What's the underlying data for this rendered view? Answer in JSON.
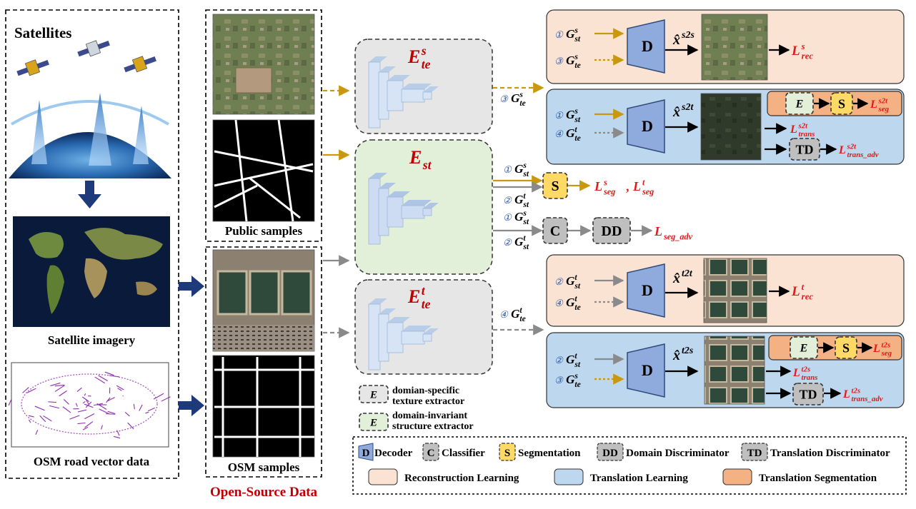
{
  "left": {
    "satellites_label": "Satellites",
    "satellite_imagery_label": "Satellite imagery",
    "osm_vector_label": "OSM road vector data"
  },
  "samples": {
    "public_label": "Public samples",
    "osm_label": "OSM samples",
    "open_source_label": "Open-Source Data"
  },
  "encoders": {
    "source_texture": {
      "base": "E",
      "sup": "s",
      "sub": "te"
    },
    "structure": {
      "base": "E",
      "sub": "st"
    },
    "target_texture": {
      "base": "E",
      "sup": "t",
      "sub": "te"
    }
  },
  "features": {
    "g_te_s": {
      "num": "③",
      "base": "G",
      "sup": "s",
      "sub": "te"
    },
    "g_st_s": {
      "num": "①",
      "base": "G",
      "sup": "s",
      "sub": "st"
    },
    "g_st_t": {
      "num": "②",
      "base": "G",
      "sup": "t",
      "sub": "st"
    },
    "g_st_s_2": {
      "num": "①",
      "base": "G",
      "sup": "s",
      "sub": "st"
    },
    "g_st_t_2": {
      "num": "②",
      "base": "G",
      "sup": "t",
      "sub": "st"
    },
    "g_te_t": {
      "num": "④",
      "base": "G",
      "sup": "t",
      "sub": "te"
    }
  },
  "middle_heads": {
    "segmentation": "S",
    "seg_loss_a": {
      "base": "L",
      "sup": "s",
      "sub": "seg"
    },
    "seg_loss_b": {
      "base": "L",
      "sup": "t",
      "sub": "seg"
    },
    "seg_loss_sep": ",",
    "classifier": "C",
    "domain_disc": "DD",
    "seg_adv_loss": {
      "base": "L",
      "sub": "seg_adv"
    }
  },
  "boxes": {
    "rec_s": {
      "in1": {
        "num": "①",
        "base": "G",
        "sup": "s",
        "sub": "st"
      },
      "in2": {
        "num": "③",
        "base": "G",
        "sup": "s",
        "sub": "te"
      },
      "decoder": "D",
      "out": {
        "base": "x̂",
        "sup": "s2s"
      },
      "loss": {
        "base": "L",
        "sup": "s",
        "sub": "rec"
      }
    },
    "trans_s2t": {
      "in1": {
        "num": "①",
        "base": "G",
        "sup": "s",
        "sub": "st"
      },
      "in2": {
        "num": "④",
        "base": "G",
        "sup": "t",
        "sub": "te"
      },
      "decoder": "D",
      "out": {
        "base": "x̂",
        "sup": "s2t"
      },
      "enc": {
        "base": "E",
        "sub": "st"
      },
      "seg": "S",
      "seg_loss": {
        "base": "L",
        "sup": "s2t",
        "sub": "seg"
      },
      "trans_loss": {
        "base": "L",
        "sup": "s2t",
        "sub": "trans"
      },
      "td": "TD",
      "adv_loss": {
        "base": "L",
        "sup": "s2t",
        "sub": "trans_adv"
      }
    },
    "rec_t": {
      "in1": {
        "num": "②",
        "base": "G",
        "sup": "t",
        "sub": "st"
      },
      "in2": {
        "num": "④",
        "base": "G",
        "sup": "t",
        "sub": "te"
      },
      "decoder": "D",
      "out": {
        "base": "x̂",
        "sup": "t2t"
      },
      "loss": {
        "base": "L",
        "sup": "t",
        "sub": "rec"
      }
    },
    "trans_t2s": {
      "in1": {
        "num": "②",
        "base": "G",
        "sup": "t",
        "sub": "st"
      },
      "in2": {
        "num": "③",
        "base": "G",
        "sup": "s",
        "sub": "te"
      },
      "decoder": "D",
      "out": {
        "base": "x̂",
        "sup": "t2s"
      },
      "enc": {
        "base": "E",
        "sub": "st"
      },
      "seg": "S",
      "seg_loss": {
        "base": "L",
        "sup": "t2s",
        "sub": "seg"
      },
      "trans_loss": {
        "base": "L",
        "sup": "t2s",
        "sub": "trans"
      },
      "td": "TD",
      "adv_loss": {
        "base": "L",
        "sup": "t2s",
        "sub": "trans_adv"
      }
    }
  },
  "extractor_legend": {
    "te_symbol": {
      "base": "E",
      "sub": "te"
    },
    "te_line1": "domian-specific",
    "te_line2": "texture extractor",
    "st_symbol": {
      "base": "E",
      "sub": "st"
    },
    "st_line1": "domain-invariant",
    "st_line2": "structure extractor"
  },
  "legend": {
    "decoder_symbol": "D",
    "decoder_label": "Decoder",
    "classifier_symbol": "C",
    "classifier_label": "Classifier",
    "segmentation_symbol": "S",
    "segmentation_label": "Segmentation",
    "dd_symbol": "DD",
    "dd_label": "Domain Discriminator",
    "td_symbol": "TD",
    "td_label": "Translation Discriminator",
    "reconstruction_label": "Reconstruction Learning",
    "translation_label": "Translation Learning",
    "translation_seg_label": "Translation Segmentation"
  },
  "colors": {
    "gold": "#c9980e",
    "gray_arrow": "#8a8a8a",
    "navy": "#1f3a7a",
    "loss_red": "#e01b1b",
    "title_red": "#c00000",
    "rec_fill": "#fbe3d3",
    "trans_fill": "#bdd7ee",
    "trans_seg_fill": "#f4b183",
    "decoder_fill": "#8faadc",
    "seg_fill": "#ffd966",
    "gray_fill": "#bfbfbf",
    "structure_fill": "#e2f0d9",
    "texture_fill": "#e7e6e6"
  }
}
